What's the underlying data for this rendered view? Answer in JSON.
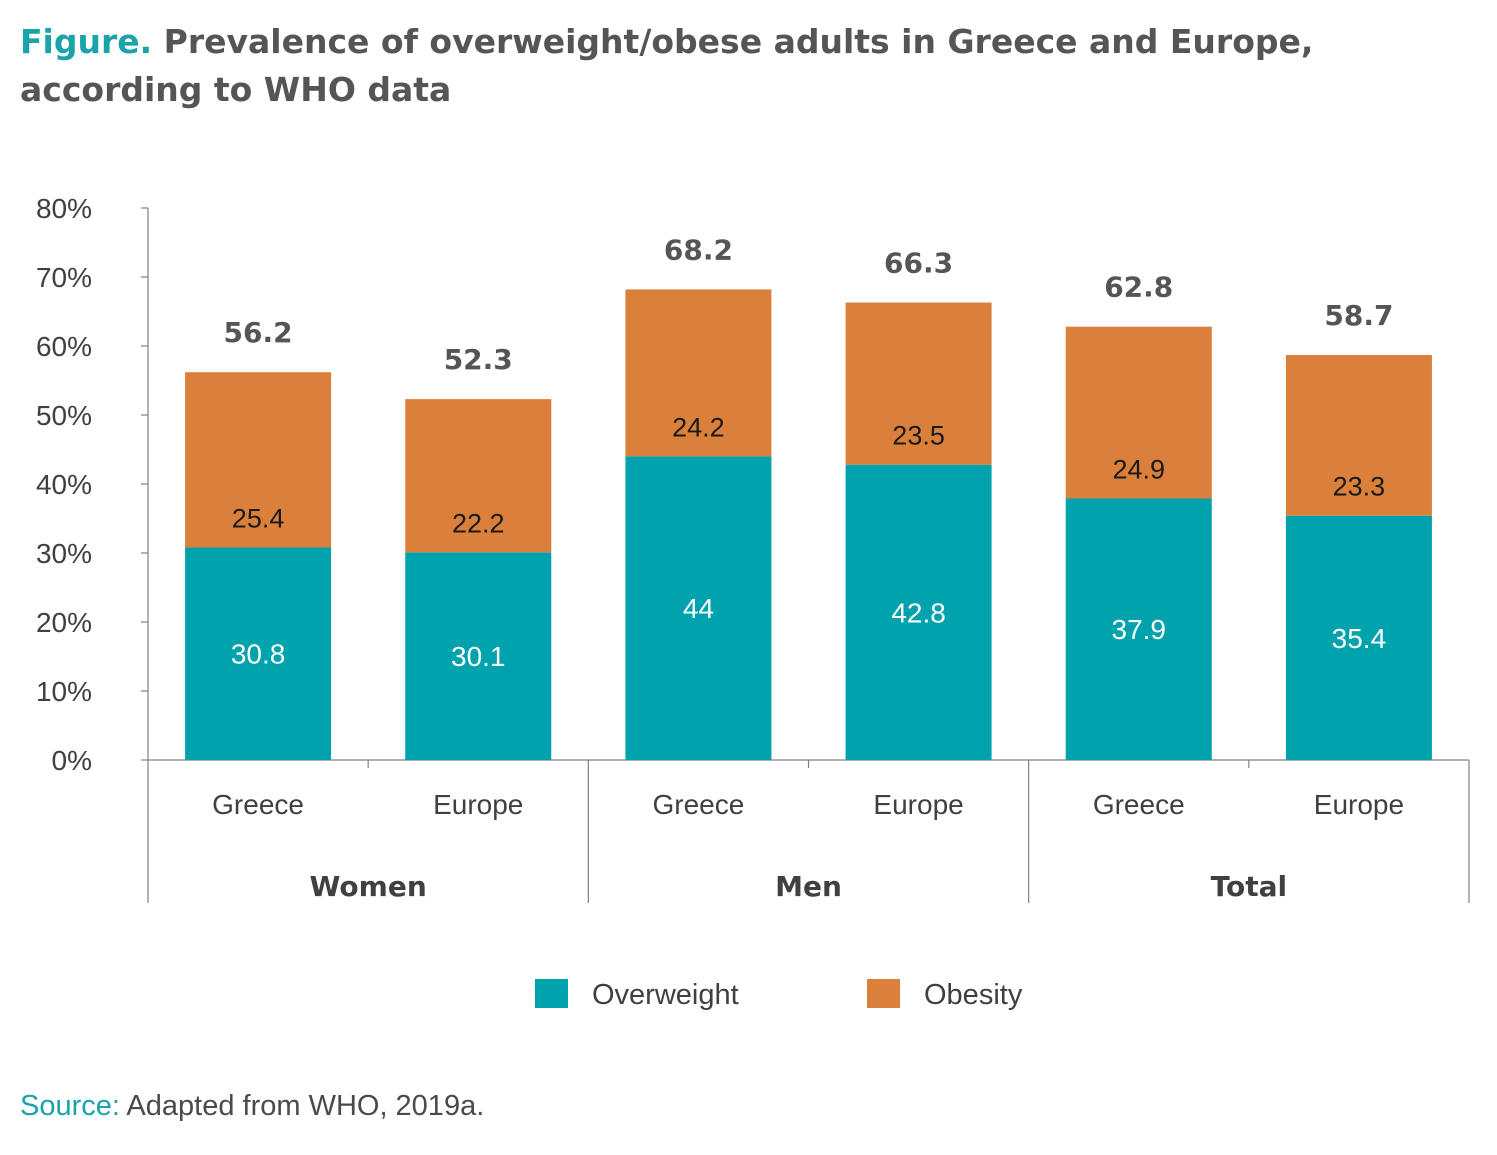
{
  "title": {
    "lead": "Figure.",
    "text": " Prevalence of overweight/obese adults in Greece and Europe, according to WHO data"
  },
  "source": {
    "label": "Source:",
    "text": " Adapted from WHO, 2019a."
  },
  "colors": {
    "overweight": "#00a3ad",
    "obesity": "#db803b",
    "title_accent": "#1aa3ab",
    "text": "#555555"
  },
  "chart_data": {
    "type": "bar",
    "stacked": true,
    "groups": [
      "Women",
      "Men",
      "Total"
    ],
    "categories": [
      "Greece",
      "Europe",
      "Greece",
      "Europe",
      "Greece",
      "Europe"
    ],
    "series": [
      {
        "name": "Overweight",
        "values": [
          30.8,
          30.1,
          44,
          42.8,
          37.9,
          35.4
        ]
      },
      {
        "name": "Obesity",
        "values": [
          25.4,
          22.2,
          24.2,
          23.5,
          24.9,
          23.3
        ]
      }
    ],
    "totals": [
      56.2,
      52.3,
      68.2,
      66.3,
      62.8,
      58.7
    ],
    "yticks": [
      "0%",
      "10%",
      "20%",
      "30%",
      "40%",
      "50%",
      "60%",
      "70%",
      "80%"
    ],
    "ylim": [
      0,
      80
    ],
    "legend_position": "bottom",
    "grid": false
  }
}
